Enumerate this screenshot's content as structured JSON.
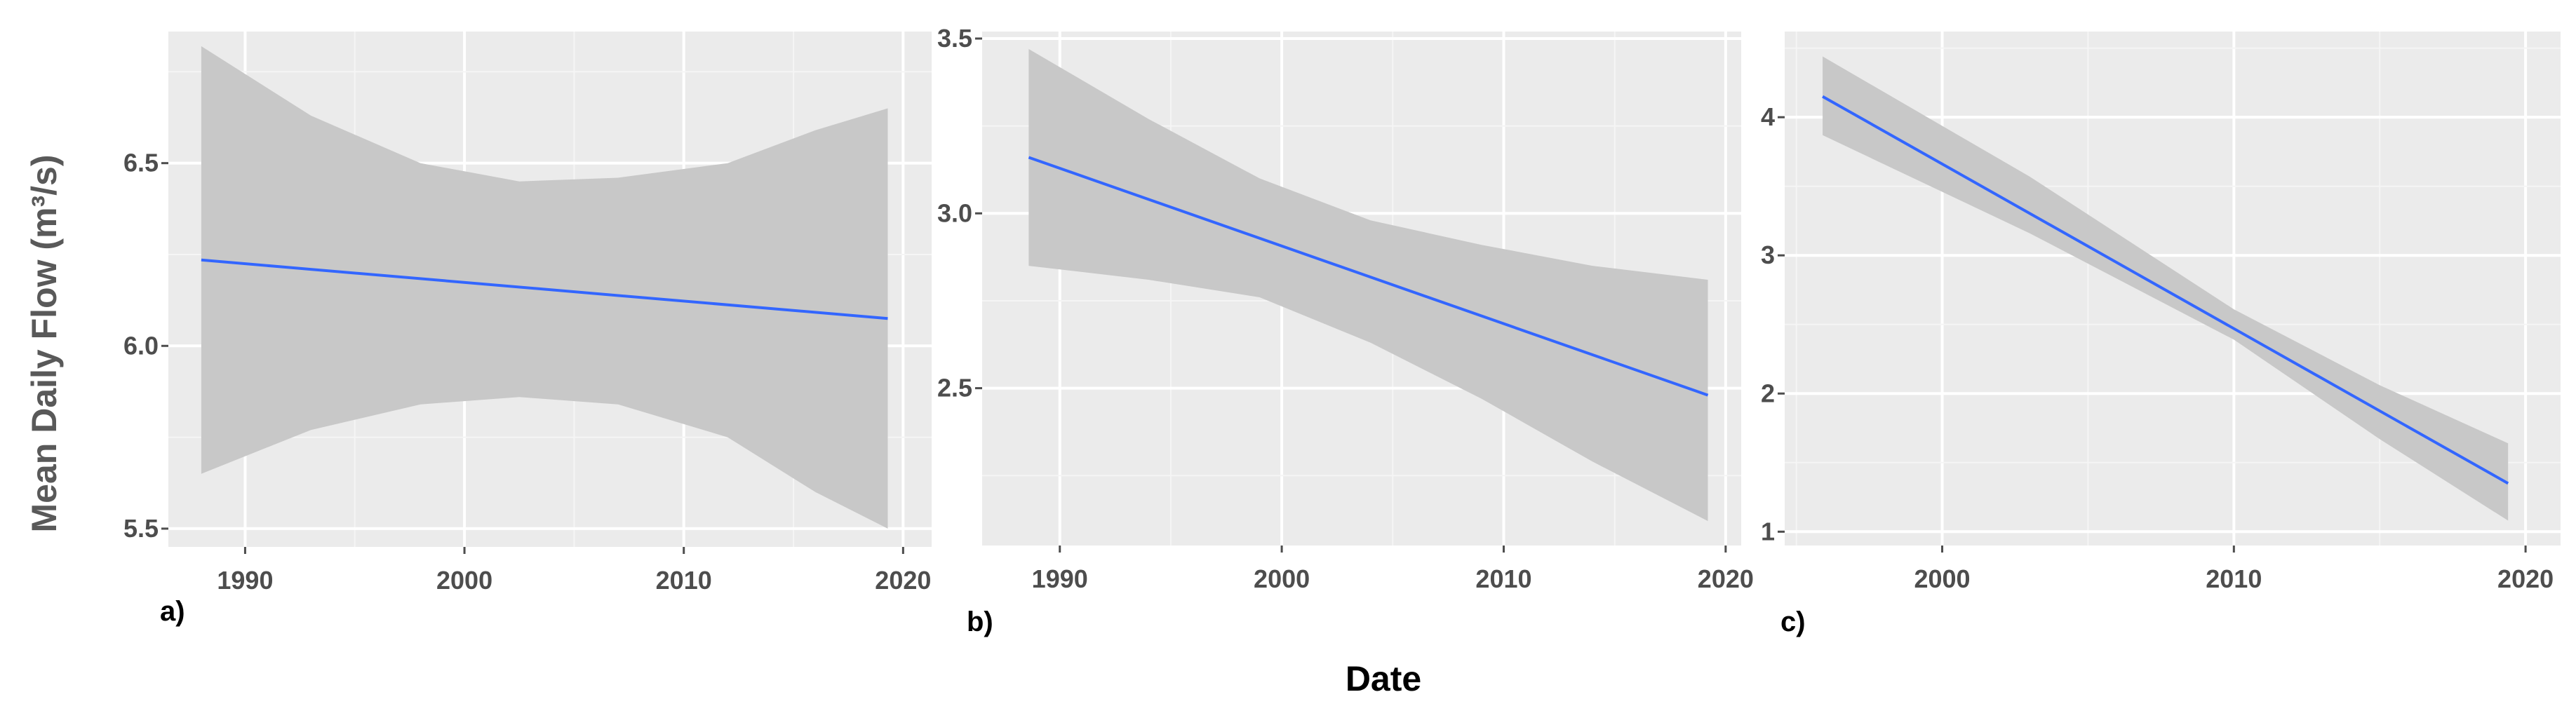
{
  "figure": {
    "xlabel": "Date",
    "ylabel": "Mean Daily Flow (m³/s)",
    "colors": {
      "panel_bg": "#ebebeb",
      "ribbon": "#c8c8c8",
      "line": "#3366ff",
      "grid": "#ffffff"
    }
  },
  "chart_data": [
    {
      "type": "line",
      "panel_label": "a)",
      "xlim": [
        1986.5,
        2021.3
      ],
      "ylim": [
        5.45,
        6.86
      ],
      "x_ticks": [
        1990,
        2000,
        2010,
        2020
      ],
      "x_tick_labels": [
        "1990",
        "2000",
        "2010",
        "2020"
      ],
      "y_ticks": [
        5.5,
        6.0,
        6.5
      ],
      "y_tick_labels": [
        "5.5",
        "6.0",
        "6.5"
      ],
      "grid": true,
      "series": [
        {
          "x": [
            1988,
            2019.3
          ],
          "y": [
            6.235,
            6.075
          ],
          "ci": {
            "x": [
              1988,
              1993,
              1998,
              2002.5,
              2007,
              2012,
              2016,
              2019.3
            ],
            "lower": [
              5.65,
              5.77,
              5.84,
              5.86,
              5.84,
              5.75,
              5.6,
              5.5
            ],
            "upper": [
              6.82,
              6.63,
              6.5,
              6.45,
              6.46,
              6.5,
              6.59,
              6.65
            ]
          }
        }
      ]
    },
    {
      "type": "line",
      "panel_label": "b)",
      "xlim": [
        1986.5,
        2020.7
      ],
      "ylim": [
        2.05,
        3.52
      ],
      "x_ticks": [
        1990,
        2000,
        2010,
        2020
      ],
      "x_tick_labels": [
        "1990",
        "2000",
        "2010",
        "2020"
      ],
      "y_ticks": [
        2.5,
        3.0,
        3.5
      ],
      "y_tick_labels": [
        "2.5",
        "3.0",
        "3.5"
      ],
      "grid": true,
      "series": [
        {
          "x": [
            1988.6,
            2019.2
          ],
          "y": [
            3.16,
            2.48
          ],
          "ci": {
            "x": [
              1988.6,
              1994,
              1999,
              2004,
              2009,
              2014,
              2019.2
            ],
            "lower": [
              2.85,
              2.81,
              2.76,
              2.63,
              2.47,
              2.29,
              2.12
            ],
            "upper": [
              3.47,
              3.27,
              3.1,
              2.98,
              2.91,
              2.85,
              2.81
            ]
          }
        }
      ]
    },
    {
      "type": "line",
      "panel_label": "c)",
      "xlim": [
        1994.6,
        2021.2
      ],
      "ylim": [
        0.9,
        4.62
      ],
      "x_ticks": [
        2000,
        2010,
        2020
      ],
      "x_tick_labels": [
        "2000",
        "2010",
        "2020"
      ],
      "y_ticks": [
        1,
        2,
        3,
        4
      ],
      "y_tick_labels": [
        "1",
        "2",
        "3",
        "4"
      ],
      "grid": true,
      "series": [
        {
          "x": [
            1995.9,
            2019.4
          ],
          "y": [
            4.15,
            1.35
          ],
          "ci": {
            "x": [
              1995.9,
              2003,
              2010,
              2015,
              2019.4
            ],
            "lower": [
              3.87,
              3.16,
              2.39,
              1.67,
              1.08
            ],
            "upper": [
              4.44,
              3.57,
              2.61,
              2.06,
              1.64
            ]
          }
        }
      ]
    }
  ]
}
